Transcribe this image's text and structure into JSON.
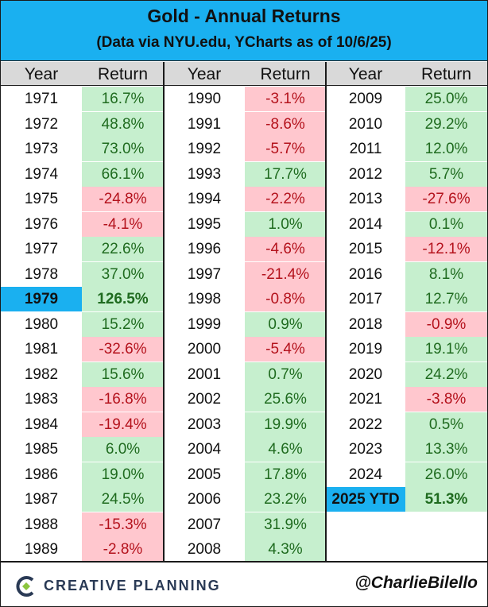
{
  "title": "Gold - Annual Returns",
  "subtitle": "(Data via NYU.edu, YCharts as of 10/6/25)",
  "headers": {
    "year": "Year",
    "return": "Return"
  },
  "brand": "CREATIVE PLANNING",
  "handle": "@CharlieBilello",
  "colors": {
    "header": "#1ab0f0",
    "positive": "#c6efce",
    "negative": "#ffc7ce",
    "highlight": "#1ab0f0"
  },
  "chart_data": {
    "type": "table",
    "columns": [
      [
        {
          "year": "1971",
          "return": "16.7%",
          "value": 16.7
        },
        {
          "year": "1972",
          "return": "48.8%",
          "value": 48.8
        },
        {
          "year": "1973",
          "return": "73.0%",
          "value": 73.0
        },
        {
          "year": "1974",
          "return": "66.1%",
          "value": 66.1
        },
        {
          "year": "1975",
          "return": "-24.8%",
          "value": -24.8
        },
        {
          "year": "1976",
          "return": "-4.1%",
          "value": -4.1
        },
        {
          "year": "1977",
          "return": "22.6%",
          "value": 22.6
        },
        {
          "year": "1978",
          "return": "37.0%",
          "value": 37.0
        },
        {
          "year": "1979",
          "return": "126.5%",
          "value": 126.5,
          "highlight": true
        },
        {
          "year": "1980",
          "return": "15.2%",
          "value": 15.2
        },
        {
          "year": "1981",
          "return": "-32.6%",
          "value": -32.6
        },
        {
          "year": "1982",
          "return": "15.6%",
          "value": 15.6
        },
        {
          "year": "1983",
          "return": "-16.8%",
          "value": -16.8
        },
        {
          "year": "1984",
          "return": "-19.4%",
          "value": -19.4
        },
        {
          "year": "1985",
          "return": "6.0%",
          "value": 6.0
        },
        {
          "year": "1986",
          "return": "19.0%",
          "value": 19.0
        },
        {
          "year": "1987",
          "return": "24.5%",
          "value": 24.5
        },
        {
          "year": "1988",
          "return": "-15.3%",
          "value": -15.3
        },
        {
          "year": "1989",
          "return": "-2.8%",
          "value": -2.8
        }
      ],
      [
        {
          "year": "1990",
          "return": "-3.1%",
          "value": -3.1
        },
        {
          "year": "1991",
          "return": "-8.6%",
          "value": -8.6
        },
        {
          "year": "1992",
          "return": "-5.7%",
          "value": -5.7
        },
        {
          "year": "1993",
          "return": "17.7%",
          "value": 17.7
        },
        {
          "year": "1994",
          "return": "-2.2%",
          "value": -2.2
        },
        {
          "year": "1995",
          "return": "1.0%",
          "value": 1.0
        },
        {
          "year": "1996",
          "return": "-4.6%",
          "value": -4.6
        },
        {
          "year": "1997",
          "return": "-21.4%",
          "value": -21.4
        },
        {
          "year": "1998",
          "return": "-0.8%",
          "value": -0.8
        },
        {
          "year": "1999",
          "return": "0.9%",
          "value": 0.9
        },
        {
          "year": "2000",
          "return": "-5.4%",
          "value": -5.4
        },
        {
          "year": "2001",
          "return": "0.7%",
          "value": 0.7
        },
        {
          "year": "2002",
          "return": "25.6%",
          "value": 25.6
        },
        {
          "year": "2003",
          "return": "19.9%",
          "value": 19.9
        },
        {
          "year": "2004",
          "return": "4.6%",
          "value": 4.6
        },
        {
          "year": "2005",
          "return": "17.8%",
          "value": 17.8
        },
        {
          "year": "2006",
          "return": "23.2%",
          "value": 23.2
        },
        {
          "year": "2007",
          "return": "31.9%",
          "value": 31.9
        },
        {
          "year": "2008",
          "return": "4.3%",
          "value": 4.3
        }
      ],
      [
        {
          "year": "2009",
          "return": "25.0%",
          "value": 25.0
        },
        {
          "year": "2010",
          "return": "29.2%",
          "value": 29.2
        },
        {
          "year": "2011",
          "return": "12.0%",
          "value": 12.0
        },
        {
          "year": "2012",
          "return": "5.7%",
          "value": 5.7
        },
        {
          "year": "2013",
          "return": "-27.6%",
          "value": -27.6
        },
        {
          "year": "2014",
          "return": "0.1%",
          "value": 0.1
        },
        {
          "year": "2015",
          "return": "-12.1%",
          "value": -12.1
        },
        {
          "year": "2016",
          "return": "8.1%",
          "value": 8.1
        },
        {
          "year": "2017",
          "return": "12.7%",
          "value": 12.7
        },
        {
          "year": "2018",
          "return": "-0.9%",
          "value": -0.9
        },
        {
          "year": "2019",
          "return": "19.1%",
          "value": 19.1
        },
        {
          "year": "2020",
          "return": "24.2%",
          "value": 24.2
        },
        {
          "year": "2021",
          "return": "-3.8%",
          "value": -3.8
        },
        {
          "year": "2022",
          "return": "0.5%",
          "value": 0.5
        },
        {
          "year": "2023",
          "return": "13.3%",
          "value": 13.3
        },
        {
          "year": "2024",
          "return": "26.0%",
          "value": 26.0
        },
        {
          "year": "2025 YTD",
          "return": "51.3%",
          "value": 51.3,
          "highlight": true
        }
      ]
    ]
  }
}
